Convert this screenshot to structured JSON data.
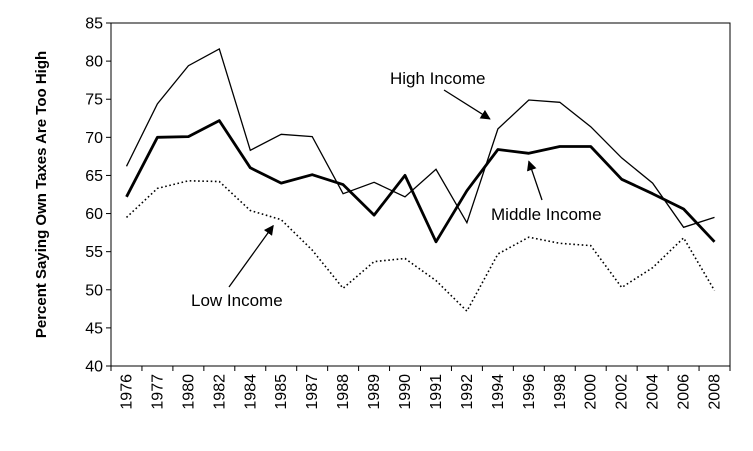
{
  "chart_data": {
    "type": "line",
    "title": "",
    "xlabel": "",
    "ylabel": "Percent Saying Own Taxes Are Too High",
    "ylim": [
      40,
      85
    ],
    "yticks": [
      "40",
      "45",
      "50",
      "55",
      "60",
      "65",
      "70",
      "75",
      "80",
      "85"
    ],
    "grid": false,
    "legend": "none",
    "categories": [
      "1976",
      "1977",
      "1980",
      "1982",
      "1984",
      "1985",
      "1987",
      "1988",
      "1989",
      "1990",
      "1991",
      "1992",
      "1994",
      "1996",
      "1998",
      "2000",
      "2002",
      "2004",
      "2006",
      "2008"
    ],
    "series": [
      {
        "name": "High Income",
        "style": "thin-solid",
        "color": "#000000",
        "values": [
          66.2,
          74.4,
          79.4,
          81.6,
          68.3,
          70.4,
          70.1,
          62.6,
          64.1,
          62.2,
          65.8,
          58.8,
          71.1,
          74.9,
          74.6,
          71.4,
          67.3,
          64.0,
          58.2,
          59.5
        ]
      },
      {
        "name": "Middle Income",
        "style": "thick-solid",
        "color": "#000000",
        "values": [
          62.2,
          70.0,
          70.1,
          72.2,
          66.0,
          64.0,
          65.1,
          63.8,
          59.8,
          65.0,
          56.3,
          63.0,
          68.4,
          67.9,
          68.8,
          68.8,
          64.5,
          62.6,
          60.6,
          56.3
        ]
      },
      {
        "name": "Low Income",
        "style": "dotted",
        "color": "#000000",
        "values": [
          59.5,
          63.3,
          64.3,
          64.2,
          60.4,
          59.2,
          55.2,
          50.2,
          53.7,
          54.1,
          51.2,
          47.2,
          54.7,
          56.9,
          56.1,
          55.8,
          50.3,
          52.9,
          56.8,
          49.9
        ]
      }
    ],
    "annotations": [
      {
        "text": "High Income",
        "points_to": "High Income",
        "at_category": "1994"
      },
      {
        "text": "Middle Income",
        "points_to": "Middle Income",
        "at_category": "1996"
      },
      {
        "text": "Low Income",
        "points_to": "Low Income",
        "at_category": "1985"
      }
    ]
  }
}
